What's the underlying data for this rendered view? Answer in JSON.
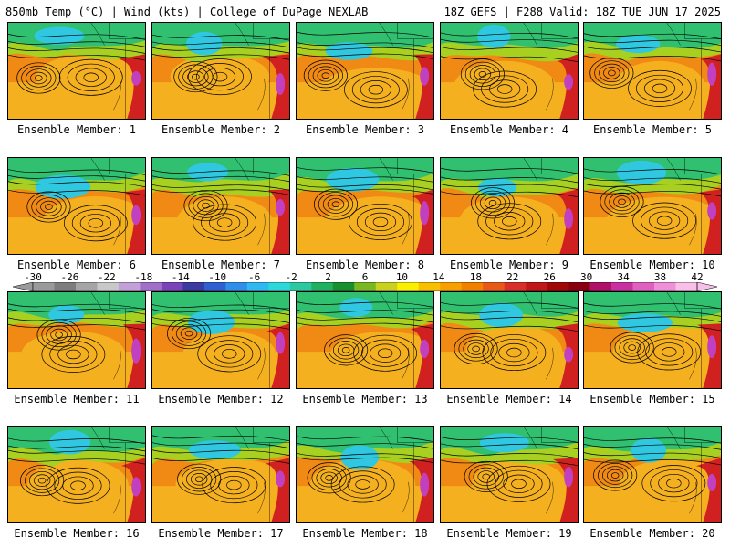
{
  "header": {
    "title_left": "850mb Temp (°C) | Wind (kts) | College of DuPage NEXLAB",
    "title_right": "18Z GEFS | F288 Valid: 18Z TUE JUN 17 2025"
  },
  "members": [
    {
      "label": "Ensemble Member: 1"
    },
    {
      "label": "Ensemble Member: 2"
    },
    {
      "label": "Ensemble Member: 3"
    },
    {
      "label": "Ensemble Member: 4"
    },
    {
      "label": "Ensemble Member: 5"
    },
    {
      "label": "Ensemble Member: 6"
    },
    {
      "label": "Ensemble Member: 7"
    },
    {
      "label": "Ensemble Member: 8"
    },
    {
      "label": "Ensemble Member: 9"
    },
    {
      "label": "Ensemble Member: 10"
    },
    {
      "label": "Ensemble Member: 11"
    },
    {
      "label": "Ensemble Member: 12"
    },
    {
      "label": "Ensemble Member: 13"
    },
    {
      "label": "Ensemble Member: 14"
    },
    {
      "label": "Ensemble Member: 15"
    },
    {
      "label": "Ensemble Member: 16"
    },
    {
      "label": "Ensemble Member: 17"
    },
    {
      "label": "Ensemble Member: 18"
    },
    {
      "label": "Ensemble Member: 19"
    },
    {
      "label": "Ensemble Member: 20"
    }
  ],
  "colorbar": {
    "tick_labels": [
      "-30",
      "-26",
      "-22",
      "-18",
      "-14",
      "-10",
      "-6",
      "-2",
      "2",
      "6",
      "10",
      "14",
      "18",
      "22",
      "26",
      "30",
      "34",
      "38",
      "42"
    ],
    "colors": [
      "#9a9a9a",
      "#7d7d7d",
      "#a5a5a5",
      "#c8c8c8",
      "#c4a0d8",
      "#a070c8",
      "#7a44b8",
      "#3a3aa0",
      "#2f5fd0",
      "#2f8fe8",
      "#30b8f0",
      "#2cd8d8",
      "#2cc8a0",
      "#20b060",
      "#189030",
      "#78b820",
      "#c8d020",
      "#f8f000",
      "#f8c000",
      "#f8a000",
      "#f08000",
      "#e85818",
      "#d83028",
      "#c01818",
      "#a00808",
      "#880010",
      "#b01068",
      "#c830a0",
      "#e060c0",
      "#f090d8",
      "#f8c0e8"
    ]
  },
  "map_colors": {
    "ocean_warm": "#f08a14",
    "subtropic": "#f5b020",
    "mid": "#a8d020",
    "cool": "#30c070",
    "cold": "#30c8e0",
    "hot": "#d02020",
    "hot_core": "#c040c0",
    "contour": "#000000"
  }
}
